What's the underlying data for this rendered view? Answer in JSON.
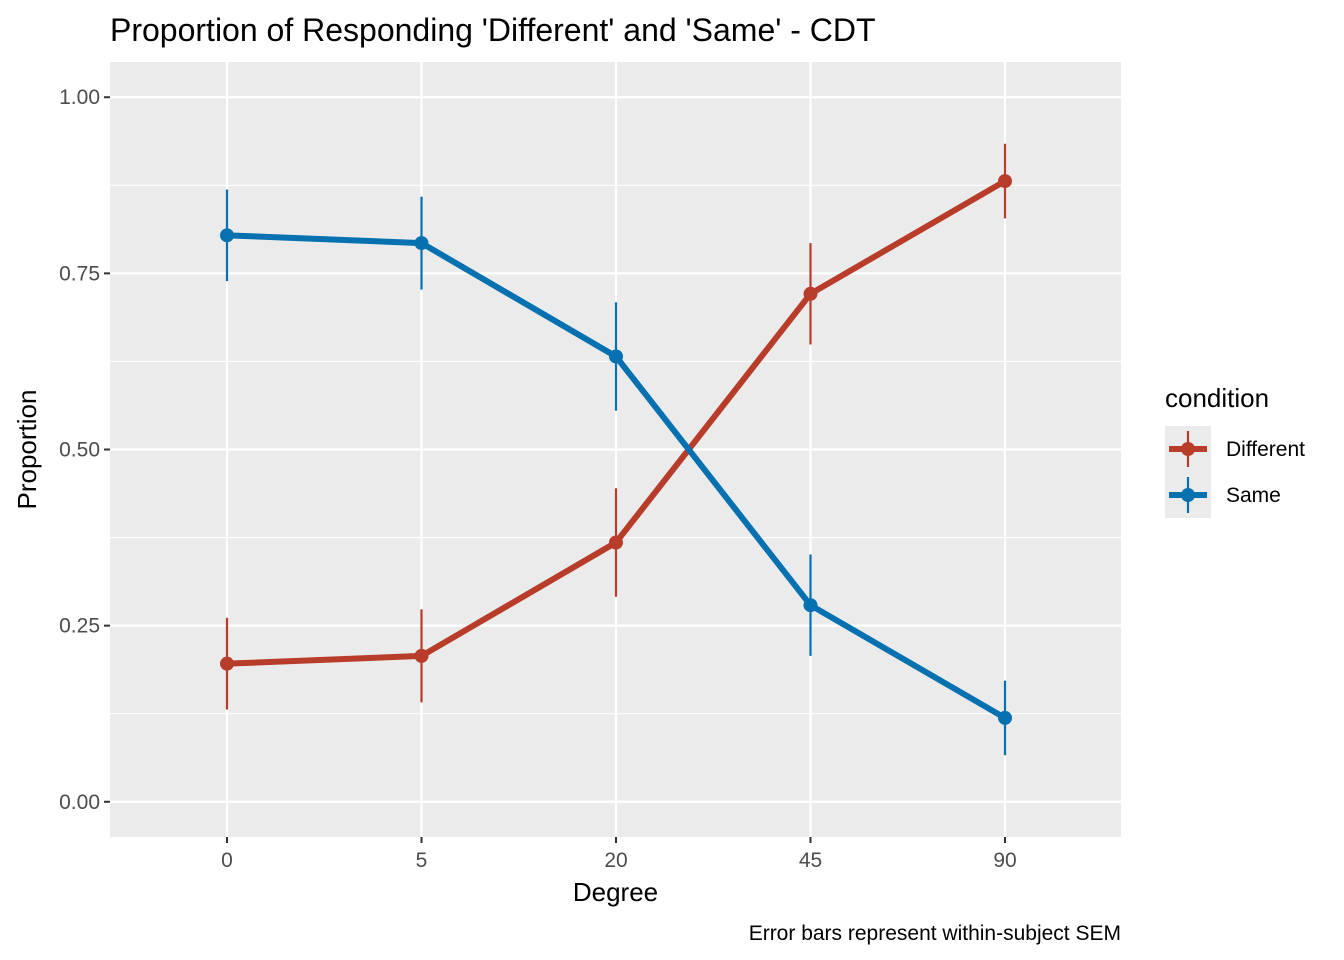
{
  "chart_data": {
    "type": "line",
    "title": "Proportion of Responding 'Different' and 'Same' - CDT",
    "xlabel": "Degree",
    "ylabel": "Proportion",
    "caption": "Error bars represent within-subject SEM",
    "categories": [
      "0",
      "5",
      "20",
      "45",
      "90"
    ],
    "ylim": [
      -0.05,
      1.05
    ],
    "yticks": [
      0.0,
      0.25,
      0.5,
      0.75,
      1.0
    ],
    "ytick_labels": [
      "0.00",
      "0.25",
      "0.50",
      "0.75",
      "1.00"
    ],
    "grid": true,
    "legend": {
      "title": "condition",
      "position": "right"
    },
    "series": [
      {
        "name": "Different",
        "color": "#B83C2A",
        "values": [
          0.196,
          0.207,
          0.368,
          0.721,
          0.881
        ],
        "errors": [
          0.065,
          0.066,
          0.077,
          0.072,
          0.053
        ]
      },
      {
        "name": "Same",
        "color": "#0571B0",
        "values": [
          0.804,
          0.793,
          0.632,
          0.279,
          0.119
        ],
        "errors": [
          0.065,
          0.066,
          0.077,
          0.072,
          0.053
        ]
      }
    ],
    "panel_background": "#EBEBEB",
    "gridline_color": "#FFFFFF"
  }
}
